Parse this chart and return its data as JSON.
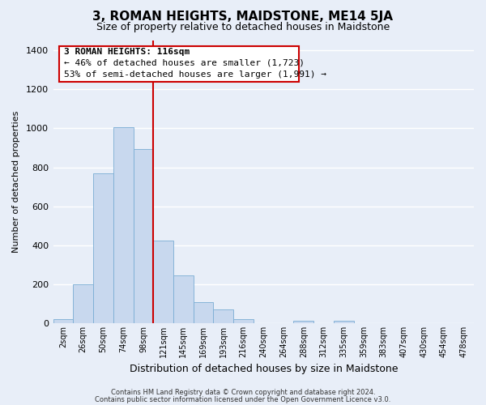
{
  "title": "3, ROMAN HEIGHTS, MAIDSTONE, ME14 5JA",
  "subtitle": "Size of property relative to detached houses in Maidstone",
  "xlabel": "Distribution of detached houses by size in Maidstone",
  "ylabel": "Number of detached properties",
  "bar_labels": [
    "2sqm",
    "26sqm",
    "50sqm",
    "74sqm",
    "98sqm",
    "121sqm",
    "145sqm",
    "169sqm",
    "193sqm",
    "216sqm",
    "240sqm",
    "264sqm",
    "288sqm",
    "312sqm",
    "335sqm",
    "359sqm",
    "383sqm",
    "407sqm",
    "430sqm",
    "454sqm",
    "478sqm"
  ],
  "bar_heights": [
    20,
    200,
    770,
    1005,
    895,
    425,
    245,
    110,
    70,
    20,
    0,
    0,
    15,
    0,
    15,
    0,
    0,
    0,
    0,
    0,
    0
  ],
  "bar_color": "#c8d8ee",
  "bar_edge_color": "#7aadd4",
  "vline_index": 4.5,
  "vline_color": "#cc0000",
  "ylim": [
    0,
    1450
  ],
  "yticks": [
    0,
    200,
    400,
    600,
    800,
    1000,
    1200,
    1400
  ],
  "annotation_title": "3 ROMAN HEIGHTS: 116sqm",
  "annotation_line1": "← 46% of detached houses are smaller (1,723)",
  "annotation_line2": "53% of semi-detached houses are larger (1,991) →",
  "footer1": "Contains HM Land Registry data © Crown copyright and database right 2024.",
  "footer2": "Contains public sector information licensed under the Open Government Licence v3.0.",
  "bg_color": "#e8eef8",
  "plot_bg_color": "#e8eef8",
  "grid_color": "#ffffff",
  "annotation_box_color": "#ffffff",
  "annotation_box_edge": "#cc0000"
}
